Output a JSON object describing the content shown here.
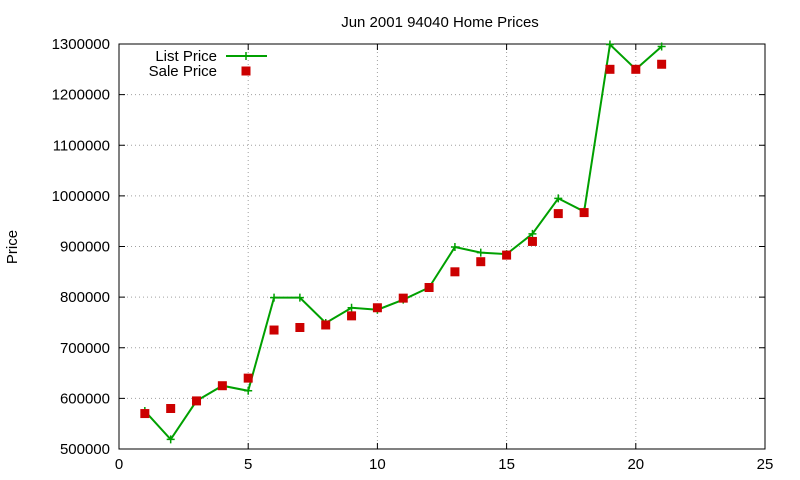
{
  "chart_data": {
    "type": "line",
    "title": "Jun 2001 94040 Home Prices",
    "xlabel": "",
    "ylabel": "Price",
    "xlim": [
      0,
      25
    ],
    "ylim": [
      500000,
      1300000
    ],
    "x_ticks": [
      0,
      5,
      10,
      15,
      20,
      25
    ],
    "y_ticks": [
      500000,
      600000,
      700000,
      800000,
      900000,
      1000000,
      1100000,
      1200000,
      1300000
    ],
    "grid": true,
    "legend_position": "top-left",
    "series": [
      {
        "name": "List Price",
        "style": "line-with-plus-markers",
        "color": "#00a000",
        "x": [
          1,
          2,
          3,
          4,
          5,
          6,
          7,
          8,
          9,
          10,
          11,
          12,
          13,
          14,
          15,
          16,
          17,
          18,
          19,
          20,
          21
        ],
        "values": [
          575000,
          519000,
          595000,
          625000,
          615000,
          799000,
          799000,
          749000,
          779000,
          775000,
          795000,
          819000,
          899000,
          888000,
          885000,
          925000,
          995000,
          969000,
          1299000,
          1250000,
          1295000
        ]
      },
      {
        "name": "Sale Price",
        "style": "square-markers",
        "color": "#cc0000",
        "x": [
          1,
          2,
          3,
          4,
          5,
          6,
          7,
          8,
          9,
          10,
          11,
          12,
          13,
          14,
          15,
          16,
          17,
          18,
          19,
          20,
          21
        ],
        "values": [
          570000,
          580000,
          595000,
          625000,
          640000,
          735000,
          740000,
          745000,
          763000,
          779000,
          798000,
          819000,
          850000,
          870000,
          883000,
          910000,
          965000,
          967000,
          1250000,
          1250000,
          1260000
        ]
      }
    ]
  }
}
